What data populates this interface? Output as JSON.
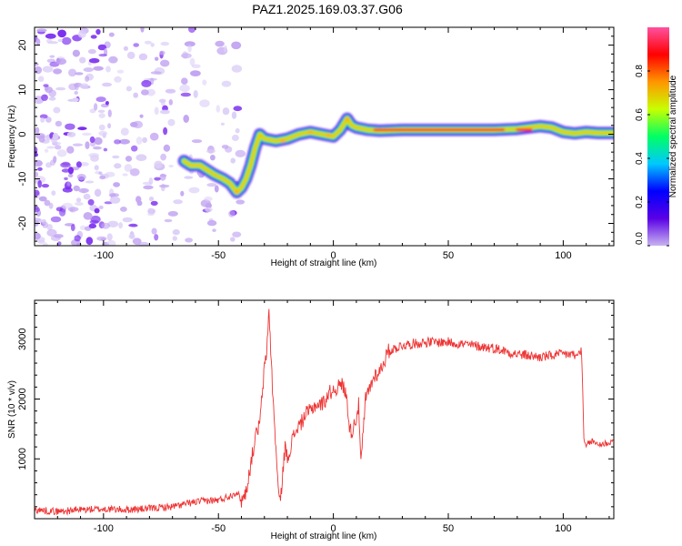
{
  "figure": {
    "title": "PAZ1.2025.169.03.37.G06"
  },
  "chart_data": [
    {
      "type": "heatmap",
      "xlabel": "Height of straight line (km)",
      "ylabel": "Frequency (Hz)",
      "xlim": [
        -130,
        122
      ],
      "ylim": [
        -25,
        24
      ],
      "xticks": [
        -100,
        -50,
        0,
        50,
        100
      ],
      "yticks": [
        -20,
        -10,
        0,
        10,
        20
      ],
      "xtick_labels": [
        "-100",
        "-50",
        "0",
        "50",
        "100"
      ],
      "ytick_labels": [
        "-20",
        "-10",
        "0",
        "10",
        "20"
      ],
      "colorbar": {
        "label": "Normalized spectral amplitude",
        "range": [
          0,
          1
        ],
        "ticks": [
          0.0,
          0.2,
          0.4,
          0.6,
          0.8
        ],
        "tick_labels": [
          "0.0",
          "0.2",
          "0.4",
          "0.6",
          "0.8"
        ],
        "colormap": [
          "#c8b4f0",
          "#5a00e6",
          "#0000ff",
          "#00c8ff",
          "#00ff64",
          "#c8ff00",
          "#ff9600",
          "#ff0000",
          "#ff50a0"
        ]
      },
      "ridge": {
        "x": [
          -65,
          -62,
          -58,
          -55,
          -52,
          -48,
          -45,
          -42,
          -40,
          -38,
          -36,
          -34,
          -32,
          -30,
          -25,
          -20,
          -15,
          -10,
          -5,
          0,
          3,
          6,
          8,
          10,
          15,
          20,
          30,
          40,
          50,
          60,
          70,
          80,
          85,
          90,
          95,
          100,
          105,
          110,
          115,
          122
        ],
        "y": [
          -6,
          -7,
          -7,
          -8,
          -9,
          -10,
          -11,
          -13,
          -12,
          -10,
          -7,
          -3,
          0,
          -1,
          -1.5,
          -1,
          0,
          0.5,
          0,
          -0.5,
          1,
          3.5,
          2,
          1.5,
          1,
          0.8,
          1,
          1,
          1,
          1,
          1,
          1.2,
          1.5,
          1.8,
          1.5,
          0.5,
          0.2,
          0.5,
          0.3,
          0.3
        ]
      },
      "noise_region_x": [
        -130,
        -40
      ],
      "grid": false
    },
    {
      "type": "line",
      "xlabel": "Height of straight line (km)",
      "ylabel": "SNR (10 * v/v)",
      "xlim": [
        -130,
        122
      ],
      "ylim": [
        0,
        3650
      ],
      "xticks": [
        -100,
        -50,
        0,
        50,
        100
      ],
      "yticks": [
        1000,
        2000,
        3000
      ],
      "xtick_labels": [
        "-100",
        "-50",
        "0",
        "50",
        "100"
      ],
      "ytick_labels": [
        "1000",
        "2000",
        "3000"
      ],
      "series": [
        {
          "color": "#ee3333",
          "x": [
            -130,
            -120,
            -110,
            -100,
            -90,
            -80,
            -70,
            -60,
            -55,
            -50,
            -45,
            -42,
            -40,
            -38,
            -36,
            -34,
            -32,
            -30,
            -29,
            -28,
            -27,
            -26,
            -25,
            -24,
            -23,
            -22,
            -21,
            -20,
            -18,
            -16,
            -14,
            -12,
            -10,
            -8,
            -6,
            -4,
            -2,
            0,
            2,
            4,
            6,
            7,
            8,
            10,
            11,
            12,
            14,
            16,
            18,
            20,
            24,
            30,
            40,
            50,
            60,
            70,
            80,
            90,
            100,
            104,
            106,
            107,
            108,
            109,
            110,
            112,
            115,
            118,
            122
          ],
          "y": [
            150,
            120,
            150,
            160,
            150,
            170,
            200,
            280,
            300,
            310,
            380,
            450,
            300,
            450,
            900,
            1350,
            1600,
            2500,
            2800,
            3500,
            2600,
            1800,
            1200,
            500,
            250,
            800,
            1200,
            1000,
            1300,
            1500,
            1600,
            1750,
            1800,
            1900,
            1900,
            1950,
            2100,
            2150,
            2200,
            2250,
            2000,
            1500,
            1450,
            1700,
            1900,
            900,
            2000,
            2200,
            2400,
            2450,
            2800,
            2900,
            2950,
            2950,
            2900,
            2850,
            2750,
            2700,
            2750,
            2750,
            2700,
            2800,
            2800,
            1300,
            1200,
            1300,
            1250,
            1250,
            1300
          ]
        }
      ],
      "grid": false
    }
  ]
}
